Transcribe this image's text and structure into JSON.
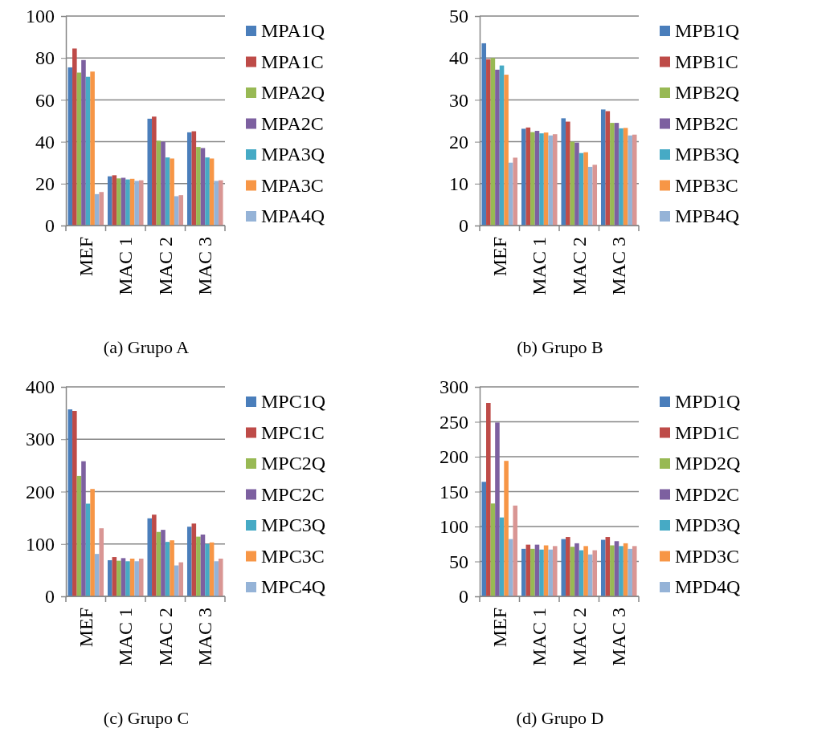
{
  "chart_data": [
    {
      "type": "bar",
      "title": "(a) Grupo A",
      "categories": [
        "MEF",
        "MAC 1",
        "MAC 2",
        "MAC 3"
      ],
      "ylim": [
        0,
        100
      ],
      "yticks": [
        0,
        20,
        40,
        60,
        80,
        100
      ],
      "grid": "y",
      "legend": "right",
      "series": [
        {
          "name": "MPA1Q",
          "color": "#4a7ebb",
          "values": [
            75.5,
            23.5,
            51,
            44.5
          ]
        },
        {
          "name": "MPA1C",
          "color": "#be4b48",
          "values": [
            84.5,
            24,
            52,
            45
          ]
        },
        {
          "name": "MPA2Q",
          "color": "#98b954",
          "values": [
            73,
            22.5,
            40.5,
            37.5
          ]
        },
        {
          "name": "MPA2C",
          "color": "#7d60a0",
          "values": [
            79,
            22.8,
            40,
            37
          ]
        },
        {
          "name": "MPA3Q",
          "color": "#46aac5",
          "values": [
            71,
            22,
            32.5,
            32.5
          ]
        },
        {
          "name": "MPA3C",
          "color": "#f79646",
          "values": [
            73.5,
            22.3,
            32,
            32
          ]
        },
        {
          "name": "MPA4Q",
          "color": "#95b3d7",
          "values": [
            15,
            21.3,
            14,
            21.3
          ]
        },
        {
          "color": "#d99694",
          "values": [
            16,
            21.6,
            14.5,
            21.6
          ]
        }
      ]
    },
    {
      "type": "bar",
      "title": "(b) Grupo B",
      "categories": [
        "MEF",
        "MAC 1",
        "MAC 2",
        "MAC 3"
      ],
      "ylim": [
        0,
        50
      ],
      "yticks": [
        0,
        10,
        20,
        30,
        40,
        50
      ],
      "grid": "y",
      "legend": "right",
      "series": [
        {
          "name": "MPB1Q",
          "color": "#4a7ebb",
          "values": [
            43.5,
            23.1,
            25.6,
            27.7
          ]
        },
        {
          "name": "MPB1C",
          "color": "#be4b48",
          "values": [
            39.7,
            23.4,
            24.8,
            27.3
          ]
        },
        {
          "name": "MPB2Q",
          "color": "#98b954",
          "values": [
            40,
            22.3,
            20,
            24.5
          ]
        },
        {
          "name": "MPB2C",
          "color": "#7d60a0",
          "values": [
            37.2,
            22.6,
            19.8,
            24.5
          ]
        },
        {
          "name": "MPB3Q",
          "color": "#46aac5",
          "values": [
            38.2,
            22,
            17.3,
            23.2
          ]
        },
        {
          "name": "MPB3C",
          "color": "#f79646",
          "values": [
            36,
            22.2,
            17.5,
            23.3
          ]
        },
        {
          "name": "MPB4Q",
          "color": "#95b3d7",
          "values": [
            15,
            21.5,
            14,
            21.5
          ]
        },
        {
          "color": "#d99694",
          "values": [
            16.2,
            21.8,
            14.5,
            21.7
          ]
        }
      ]
    },
    {
      "type": "bar",
      "title": "(c) Grupo C",
      "categories": [
        "MEF",
        "MAC 1",
        "MAC 2",
        "MAC 3"
      ],
      "ylim": [
        0,
        400
      ],
      "yticks": [
        0,
        100,
        200,
        300,
        400
      ],
      "grid": "y",
      "legend": "right",
      "series": [
        {
          "name": "MPC1Q",
          "color": "#4a7ebb",
          "values": [
            357,
            69,
            149,
            133
          ]
        },
        {
          "name": "MPC1C",
          "color": "#be4b48",
          "values": [
            354,
            75,
            156,
            139
          ]
        },
        {
          "name": "MPC2Q",
          "color": "#98b954",
          "values": [
            230,
            68,
            123,
            114
          ]
        },
        {
          "name": "MPC2C",
          "color": "#7d60a0",
          "values": [
            258,
            73,
            127,
            118
          ]
        },
        {
          "name": "MPC3Q",
          "color": "#46aac5",
          "values": [
            177,
            67,
            104,
            100
          ]
        },
        {
          "name": "MPC3C",
          "color": "#f79646",
          "values": [
            205,
            72,
            107,
            103
          ]
        },
        {
          "name": "MPC4Q",
          "color": "#95b3d7",
          "values": [
            81,
            67,
            59,
            67
          ]
        },
        {
          "color": "#d99694",
          "values": [
            130,
            72,
            65,
            72
          ]
        }
      ]
    },
    {
      "type": "bar",
      "title": "(d) Grupo D",
      "categories": [
        "MEF",
        "MAC 1",
        "MAC 2",
        "MAC 3"
      ],
      "ylim": [
        0,
        300
      ],
      "yticks": [
        0,
        50,
        100,
        150,
        200,
        250,
        300
      ],
      "grid": "y",
      "legend": "right",
      "series": [
        {
          "name": "MPD1Q",
          "color": "#4a7ebb",
          "values": [
            164,
            68,
            82,
            81
          ]
        },
        {
          "name": "MPD1C",
          "color": "#be4b48",
          "values": [
            277,
            74,
            85,
            85
          ]
        },
        {
          "name": "MPD2Q",
          "color": "#98b954",
          "values": [
            133,
            68,
            71,
            73
          ]
        },
        {
          "name": "MPD2C",
          "color": "#7d60a0",
          "values": [
            249,
            74,
            76,
            79
          ]
        },
        {
          "name": "MPD3Q",
          "color": "#46aac5",
          "values": [
            113,
            67,
            66,
            72
          ]
        },
        {
          "name": "MPD3C",
          "color": "#f79646",
          "values": [
            194,
            73,
            72,
            76
          ]
        },
        {
          "name": "MPD4Q",
          "color": "#95b3d7",
          "values": [
            82,
            67,
            60,
            68
          ]
        },
        {
          "color": "#d99694",
          "values": [
            130,
            72,
            66,
            72
          ]
        }
      ]
    }
  ]
}
